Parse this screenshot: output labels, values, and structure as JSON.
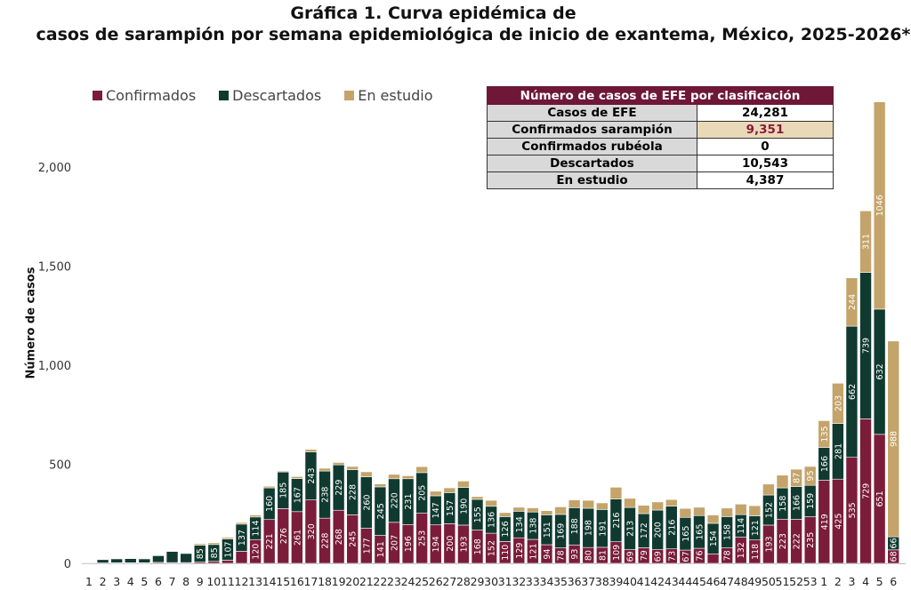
{
  "chart_data": {
    "type": "bar",
    "stacked": true,
    "title_line1": "Gráfica 1. Curva epidémica de",
    "title_line2": "casos de sarampión por semana epidemiológica de inicio de exantema, México, 2025-2026*",
    "ylabel": "Número de casos",
    "xlabel": "",
    "ylim": [
      0,
      2350
    ],
    "yticks": [
      0,
      500,
      1000,
      1500,
      2000
    ],
    "ytick_labels": [
      "0",
      "500",
      "1,000",
      "1,500",
      "2,000"
    ],
    "legend_position": "top-left",
    "categories": [
      "1",
      "2",
      "3",
      "4",
      "5",
      "6",
      "7",
      "8",
      "9",
      "10",
      "11",
      "12",
      "13",
      "14",
      "15",
      "16",
      "17",
      "18",
      "19",
      "20",
      "21",
      "22",
      "23",
      "24",
      "25",
      "26",
      "27",
      "28",
      "29",
      "30",
      "31",
      "32",
      "33",
      "34",
      "35",
      "36",
      "37",
      "38",
      "39",
      "40",
      "41",
      "42",
      "43",
      "44",
      "45",
      "46",
      "47",
      "48",
      "49",
      "50",
      "51",
      "52",
      "53",
      "1",
      "2",
      "3",
      "4",
      "5",
      "6"
    ],
    "series": [
      {
        "name": "Confirmados",
        "color": "#7a1c3a",
        "values": [
          0,
          2,
          3,
          3,
          3,
          5,
          4,
          4,
          6,
          10,
          16,
          61,
          120,
          221,
          276,
          261,
          320,
          228,
          268,
          245,
          177,
          141,
          207,
          196,
          253,
          194,
          200,
          193,
          168,
          152,
          110,
          129,
          121,
          94,
          78,
          93,
          80,
          81,
          109,
          69,
          79,
          69,
          73,
          67,
          76,
          48,
          78,
          132,
          118,
          193,
          223,
          222,
          235,
          419,
          425,
          535,
          729,
          651,
          68
        ]
      },
      {
        "name": "Descartados",
        "color": "#103a2f",
        "values": [
          3,
          17,
          20,
          21,
          20,
          34,
          56,
          46,
          85,
          85,
          107,
          137,
          114,
          160,
          185,
          167,
          243,
          238,
          229,
          228,
          260,
          245,
          220,
          231,
          205,
          147,
          157,
          190,
          155,
          136,
          126,
          134,
          138,
          151,
          169,
          188,
          198,
          191,
          216,
          213,
          172,
          200,
          216,
          165,
          165,
          154,
          158,
          114,
          121,
          152,
          158,
          166,
          159,
          166,
          281,
          662,
          739,
          632,
          66
        ]
      },
      {
        "name": "En estudio",
        "color": "#c4a46b",
        "values": [
          0,
          1,
          2,
          2,
          2,
          2,
          3,
          3,
          8,
          9,
          8,
          8,
          10,
          8,
          5,
          10,
          12,
          14,
          12,
          16,
          25,
          15,
          22,
          15,
          30,
          23,
          24,
          32,
          14,
          30,
          20,
          20,
          21,
          21,
          38,
          39,
          40,
          33,
          59,
          46,
          42,
          41,
          33,
          45,
          42,
          42,
          43,
          53,
          52,
          55,
          64,
          87,
          95,
          135,
          203,
          244,
          311,
          1046,
          988
        ]
      }
    ]
  },
  "summary_table": {
    "header": "Número de casos de EFE por clasificación",
    "rows": [
      {
        "label": "Casos de EFE",
        "value": "24,281"
      },
      {
        "label": "Confirmados sarampión",
        "value": "9,351"
      },
      {
        "label": "Confirmados rubéola",
        "value": "0"
      },
      {
        "label": "Descartados",
        "value": "10,543"
      },
      {
        "label": "En estudio",
        "value": "4,387"
      }
    ]
  }
}
